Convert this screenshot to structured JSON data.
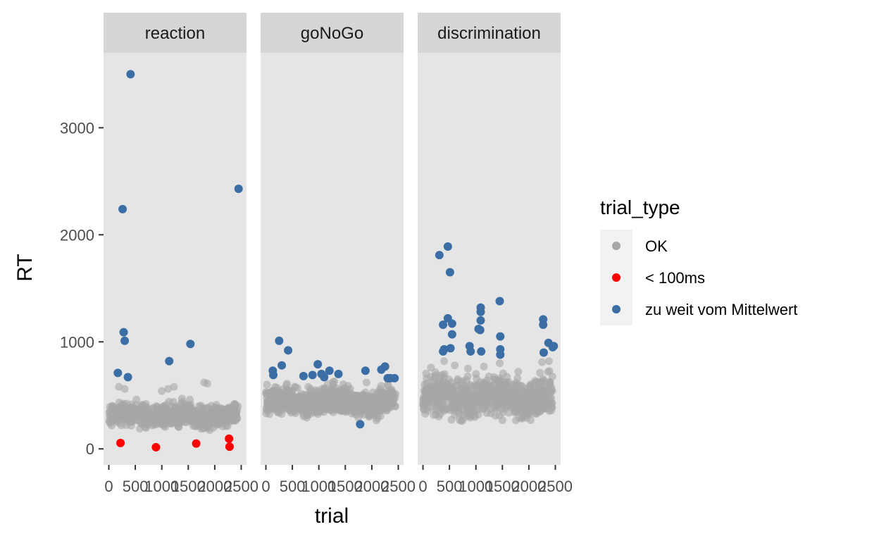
{
  "chart_data": {
    "type": "scatter",
    "xlabel": "trial",
    "ylabel": "RT",
    "xlim": [
      -100,
      2600
    ],
    "ylim": [
      -150,
      3700
    ],
    "x_ticks": [
      0,
      500,
      1000,
      1500,
      2000,
      2500
    ],
    "x_tick_labels": [
      "0",
      "500",
      "1000",
      "1500",
      "2000",
      "2500"
    ],
    "y_ticks": [
      0,
      1000,
      2000,
      3000
    ],
    "y_tick_labels": [
      "0",
      "1000",
      "2000",
      "3000"
    ],
    "grid": false,
    "facets": [
      "reaction",
      "goNoGo",
      "discrimination"
    ],
    "legend": {
      "title": "trial_type",
      "placement": "right",
      "entries": [
        {
          "label": "OK",
          "color": "#a6a6a6"
        },
        {
          "label": "< 100ms",
          "color": "#ff0000"
        },
        {
          "label": "zu weit vom Mittelwert",
          "color": "#3a6ea5"
        }
      ]
    },
    "ok_bands": [
      {
        "facet": "reaction",
        "x_range": [
          0,
          2450
        ],
        "rt_base": 310,
        "rt_spread": 60,
        "outliers": [
          [
            190,
            580
          ],
          [
            300,
            560
          ],
          [
            520,
            460
          ],
          [
            1000,
            540
          ],
          [
            1120,
            560
          ],
          [
            1230,
            580
          ],
          [
            1380,
            470
          ],
          [
            1530,
            460
          ],
          [
            1800,
            620
          ],
          [
            1860,
            610
          ],
          [
            900,
            380
          ],
          [
            700,
            420
          ]
        ]
      },
      {
        "facet": "goNoGo",
        "x_range": [
          0,
          2450
        ],
        "rt_base": 440,
        "rt_spread": 80,
        "outliers": [
          [
            20,
            600
          ],
          [
            400,
            610
          ],
          [
            800,
            580
          ],
          [
            1100,
            560
          ],
          [
            1500,
            510
          ],
          [
            1900,
            620
          ],
          [
            2300,
            600
          ],
          [
            2400,
            520
          ]
        ]
      },
      {
        "facet": "discrimination",
        "x_range": [
          0,
          2450
        ],
        "rt_base": 480,
        "rt_spread": 110,
        "outliers": [
          [
            150,
            760
          ],
          [
            400,
            820
          ],
          [
            600,
            780
          ],
          [
            850,
            750
          ],
          [
            1150,
            770
          ],
          [
            1450,
            800
          ],
          [
            1800,
            720
          ],
          [
            2250,
            810
          ],
          [
            2380,
            820
          ],
          [
            1000,
            700
          ]
        ]
      }
    ],
    "series": [
      {
        "name": "< 100ms",
        "facet": "reaction",
        "points": [
          [
            220,
            55
          ],
          [
            890,
            15
          ],
          [
            1650,
            50
          ],
          [
            2270,
            95
          ],
          [
            2280,
            20
          ]
        ]
      },
      {
        "name": "zu weit vom Mittelwert",
        "facet": "reaction",
        "points": [
          [
            170,
            710
          ],
          [
            260,
            2240
          ],
          [
            280,
            1090
          ],
          [
            300,
            1010
          ],
          [
            360,
            670
          ],
          [
            410,
            3500
          ],
          [
            1140,
            820
          ],
          [
            1540,
            980
          ],
          [
            2450,
            2430
          ]
        ]
      },
      {
        "name": "zu weit vom Mittelwert",
        "facet": "goNoGo",
        "points": [
          [
            130,
            730
          ],
          [
            140,
            690
          ],
          [
            250,
            1010
          ],
          [
            300,
            780
          ],
          [
            420,
            920
          ],
          [
            710,
            680
          ],
          [
            880,
            690
          ],
          [
            980,
            790
          ],
          [
            1050,
            700
          ],
          [
            1100,
            670
          ],
          [
            1200,
            730
          ],
          [
            1370,
            700
          ],
          [
            1780,
            230
          ],
          [
            1880,
            730
          ],
          [
            2180,
            740
          ],
          [
            2250,
            770
          ],
          [
            2300,
            660
          ],
          [
            2350,
            660
          ],
          [
            2430,
            660
          ]
        ]
      },
      {
        "name": "zu weit vom Mittelwert",
        "facet": "discrimination",
        "points": [
          [
            310,
            1810
          ],
          [
            380,
            1160
          ],
          [
            380,
            910
          ],
          [
            400,
            930
          ],
          [
            470,
            1890
          ],
          [
            470,
            1220
          ],
          [
            510,
            1650
          ],
          [
            520,
            940
          ],
          [
            550,
            1170
          ],
          [
            550,
            1070
          ],
          [
            880,
            960
          ],
          [
            900,
            910
          ],
          [
            1050,
            1120
          ],
          [
            1080,
            1110
          ],
          [
            1090,
            1320
          ],
          [
            1090,
            1280
          ],
          [
            1090,
            1200
          ],
          [
            1100,
            910
          ],
          [
            1450,
            1380
          ],
          [
            1460,
            1050
          ],
          [
            1460,
            930
          ],
          [
            1460,
            880
          ],
          [
            2270,
            1210
          ],
          [
            2270,
            1160
          ],
          [
            2280,
            900
          ],
          [
            2370,
            990
          ],
          [
            2450,
            950
          ],
          [
            2470,
            960
          ]
        ]
      }
    ]
  }
}
